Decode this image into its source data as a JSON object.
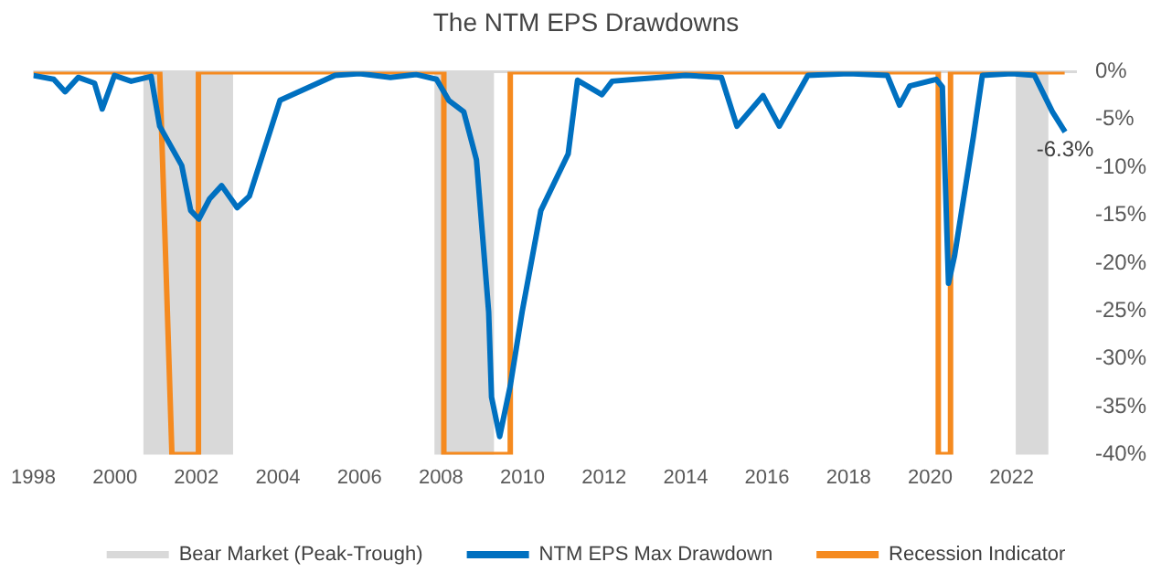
{
  "chart_data": {
    "type": "line",
    "title": "The NTM EPS Drawdowns",
    "xlim": [
      1998,
      2023.6
    ],
    "xticks": [
      1998,
      2000,
      2002,
      2004,
      2006,
      2008,
      2010,
      2012,
      2014,
      2016,
      2018,
      2020,
      2022
    ],
    "ylim": [
      -40,
      0
    ],
    "yticks": [
      {
        "value": 0,
        "label": "0%"
      },
      {
        "value": -5,
        "label": "-5%"
      },
      {
        "value": -10,
        "label": "-10%"
      },
      {
        "value": -15,
        "label": "-15%"
      },
      {
        "value": -20,
        "label": "-20%"
      },
      {
        "value": -25,
        "label": "-25%"
      },
      {
        "value": -30,
        "label": "-30%"
      },
      {
        "value": -35,
        "label": "-35%"
      },
      {
        "value": -40,
        "label": "-40%"
      }
    ],
    "grid": false,
    "legend": "bottom",
    "bands": [
      {
        "axis": "x",
        "from": 2000.7,
        "to": 2002.9,
        "label": "Bear Market (Peak-Trough)",
        "color": "#d9d9d9"
      },
      {
        "axis": "x",
        "from": 2007.84,
        "to": 2009.3,
        "color": "#d9d9d9"
      },
      {
        "axis": "x",
        "from": 2022.1,
        "to": 2022.9,
        "color": "#d9d9d9"
      }
    ],
    "ref_lines": [
      {
        "axis": "y",
        "value": 0,
        "color": "#d9d9d9"
      }
    ],
    "series": [
      {
        "name": "NTM EPS Max Drawdown",
        "color": "#0070c0",
        "x": [
          1998,
          1998.5,
          1998.78,
          1999.1,
          1999.5,
          1999.69,
          1999.99,
          2000.4,
          2000.89,
          2001.1,
          2001.64,
          2001.86,
          2002.06,
          2002.32,
          2002.62,
          2003.0,
          2003.3,
          2004.05,
          2005.4,
          2006.0,
          2006.76,
          2007.4,
          2007.89,
          2008.19,
          2008.56,
          2008.87,
          2009.17,
          2009.24,
          2009.44,
          2009.7,
          2009.99,
          2010.45,
          2011.12,
          2011.35,
          2011.95,
          2012.2,
          2012.77,
          2014.0,
          2014.88,
          2015.26,
          2015.9,
          2016.3,
          2017.0,
          2018.0,
          2018.95,
          2019.25,
          2019.5,
          2020.15,
          2020.3,
          2020.45,
          2020.6,
          2021.06,
          2021.28,
          2022.0,
          2022.56,
          2023.0,
          2023.31
        ],
        "values": [
          -0.4,
          -0.8,
          -2.1,
          -0.6,
          -1.2,
          -3.9,
          -0.4,
          -1.0,
          -0.5,
          -5.7,
          -9.8,
          -14.5,
          -15.4,
          -13.3,
          -11.9,
          -14.2,
          -13.0,
          -3.0,
          -0.4,
          -0.2,
          -0.6,
          -0.3,
          -0.8,
          -3.0,
          -4.2,
          -9.2,
          -25.1,
          -34,
          -38.1,
          -32.8,
          -25.1,
          -14.5,
          -8.6,
          -0.9,
          -2.4,
          -1.0,
          -0.8,
          -0.4,
          -0.6,
          -5.7,
          -2.5,
          -5.7,
          -0.4,
          -0.2,
          -0.4,
          -3.5,
          -1.5,
          -0.8,
          -1.6,
          -22.1,
          -19.2,
          -6.8,
          -0.4,
          -0.2,
          -0.4,
          -4.2,
          -6.3
        ]
      },
      {
        "name": "Recession Indicator",
        "color": "#f58a1f",
        "x": [
          1998,
          2001.1,
          2001.4,
          2002.05,
          2002.05,
          2008.07,
          2008.07,
          2009.7,
          2009.7,
          2020.2,
          2020.2,
          2020.5,
          2020.5,
          2023.3
        ],
        "values": [
          0,
          0,
          -40,
          -40,
          0,
          0,
          -40,
          -40,
          0,
          0,
          -40,
          -40,
          0,
          0
        ]
      }
    ],
    "annotations": [
      {
        "text": "-6.3%",
        "x": 2023.31,
        "y": -6.3
      }
    ]
  }
}
